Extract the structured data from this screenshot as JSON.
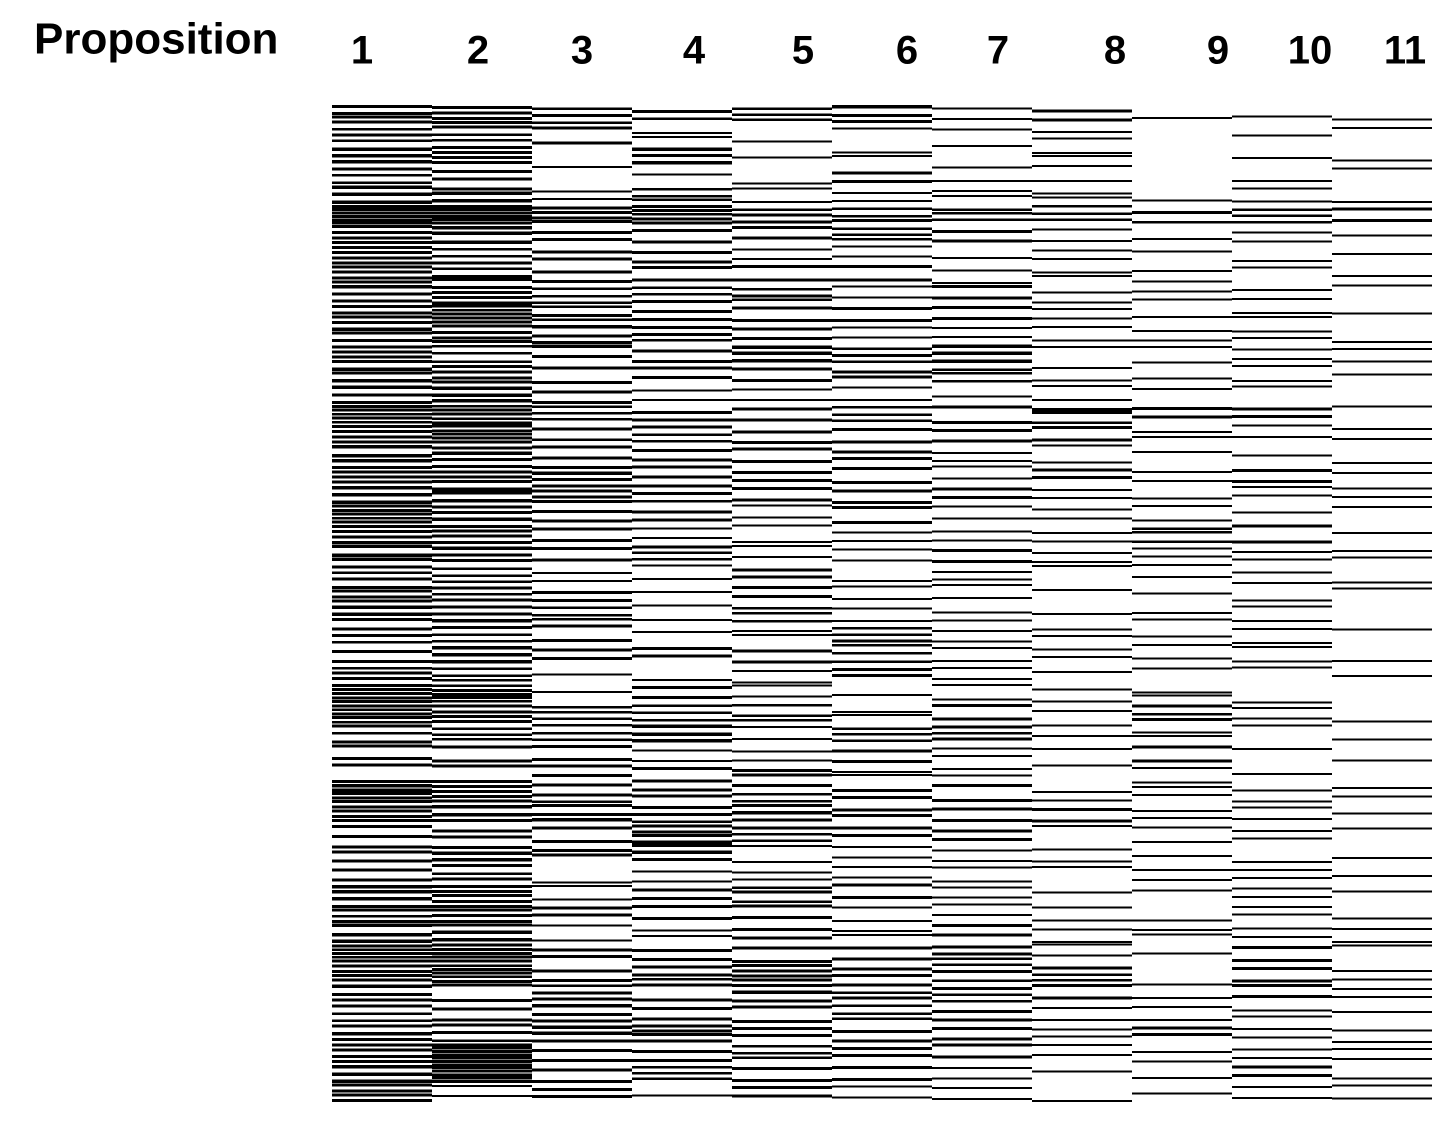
{
  "chart_data": {
    "type": "heatmap",
    "title": "Proposition",
    "color": "#000000",
    "categories": [
      "1",
      "2",
      "3",
      "4",
      "5",
      "6",
      "7",
      "8",
      "9",
      "10",
      "11"
    ],
    "values": [
      [
        0.6,
        0.4,
        0.5,
        0.4,
        0.5,
        0.9,
        0.6,
        0.6,
        0.6,
        0.5,
        0.6,
        0.5,
        0.6,
        0.5,
        0.5,
        0.7,
        0.6,
        0.5,
        0.6,
        0.5,
        0.7,
        0.6,
        0.5,
        0.4,
        0.6,
        0.5,
        0.4,
        0.3,
        0.4,
        0.8,
        0.7,
        0.4,
        0.3,
        0.3,
        0.8,
        0.6,
        0.3,
        0.5,
        0.3,
        0.5,
        0.6,
        0.5,
        0.7,
        0.6,
        0.5,
        0.4,
        0.5,
        0.6,
        0.5,
        0.6
      ],
      [
        0.6,
        0.4,
        0.6,
        0.3,
        0.5,
        0.9,
        0.5,
        0.4,
        0.4,
        0.6,
        0.7,
        0.6,
        0.4,
        0.6,
        0.5,
        0.7,
        0.7,
        0.5,
        0.6,
        0.5,
        0.5,
        0.6,
        0.5,
        0.4,
        0.4,
        0.5,
        0.4,
        0.5,
        0.4,
        0.7,
        0.6,
        0.4,
        0.3,
        0.3,
        0.6,
        0.5,
        0.3,
        0.5,
        0.4,
        0.6,
        0.6,
        0.5,
        0.8,
        0.7,
        0.3,
        0.3,
        0.4,
        0.9,
        0.9,
        0.2
      ],
      [
        0.4,
        0.3,
        0.0,
        0.1,
        0.2,
        0.6,
        0.3,
        0.3,
        0.3,
        0.4,
        0.4,
        0.5,
        0.3,
        0.3,
        0.3,
        0.4,
        0.3,
        0.3,
        0.5,
        0.6,
        0.3,
        0.3,
        0.3,
        0.2,
        0.3,
        0.4,
        0.3,
        0.3,
        0.1,
        0.1,
        0.4,
        0.4,
        0.3,
        0.3,
        0.4,
        0.5,
        0.3,
        0.3,
        0.1,
        0.2,
        0.3,
        0.2,
        0.3,
        0.3,
        0.4,
        0.5,
        0.5,
        0.3,
        0.3,
        0.3
      ],
      [
        0.3,
        0.2,
        0.5,
        0.1,
        0.4,
        0.7,
        0.3,
        0.3,
        0.3,
        0.4,
        0.3,
        0.4,
        0.3,
        0.3,
        0.2,
        0.3,
        0.4,
        0.3,
        0.3,
        0.4,
        0.3,
        0.2,
        0.4,
        0.2,
        0.1,
        0.2,
        0.1,
        0.3,
        0.1,
        0.3,
        0.4,
        0.5,
        0.2,
        0.3,
        0.3,
        0.4,
        0.6,
        0.5,
        0.2,
        0.3,
        0.3,
        0.2,
        0.3,
        0.4,
        0.3,
        0.3,
        0.6,
        0.3,
        0.4,
        0.1
      ],
      [
        0.4,
        0.1,
        0.1,
        0.1,
        0.2,
        0.4,
        0.3,
        0.2,
        0.3,
        0.4,
        0.3,
        0.3,
        0.5,
        0.3,
        0.2,
        0.3,
        0.3,
        0.3,
        0.3,
        0.3,
        0.2,
        0.2,
        0.2,
        0.3,
        0.3,
        0.4,
        0.2,
        0.3,
        0.2,
        0.2,
        0.4,
        0.2,
        0.2,
        0.3,
        0.4,
        0.5,
        0.4,
        0.2,
        0.2,
        0.4,
        0.3,
        0.3,
        0.3,
        0.6,
        0.5,
        0.3,
        0.3,
        0.4,
        0.3,
        0.3
      ],
      [
        0.5,
        0.1,
        0.2,
        0.3,
        0.2,
        0.4,
        0.4,
        0.2,
        0.3,
        0.2,
        0.3,
        0.2,
        0.4,
        0.3,
        0.2,
        0.4,
        0.3,
        0.3,
        0.3,
        0.3,
        0.3,
        0.2,
        0.2,
        0.1,
        0.2,
        0.2,
        0.4,
        0.4,
        0.3,
        0.1,
        0.2,
        0.4,
        0.3,
        0.2,
        0.3,
        0.3,
        0.3,
        0.2,
        0.2,
        0.3,
        0.2,
        0.2,
        0.3,
        0.3,
        0.4,
        0.4,
        0.3,
        0.3,
        0.3,
        0.2
      ],
      [
        0.2,
        0.1,
        0.1,
        0.2,
        0.2,
        0.4,
        0.3,
        0.1,
        0.2,
        0.3,
        0.3,
        0.2,
        0.5,
        0.4,
        0.1,
        0.3,
        0.3,
        0.2,
        0.2,
        0.3,
        0.2,
        0.2,
        0.3,
        0.2,
        0.2,
        0.2,
        0.2,
        0.2,
        0.2,
        0.2,
        0.3,
        0.4,
        0.2,
        0.2,
        0.3,
        0.3,
        0.3,
        0.2,
        0.2,
        0.2,
        0.2,
        0.3,
        0.4,
        0.4,
        0.4,
        0.3,
        0.3,
        0.3,
        0.2,
        0.2
      ],
      [
        0.3,
        0.2,
        0.2,
        0.2,
        0.2,
        0.4,
        0.2,
        0.2,
        0.2,
        0.2,
        0.2,
        0.2,
        0.1,
        0.2,
        0.2,
        0.4,
        0.3,
        0.2,
        0.3,
        0.2,
        0.2,
        0.2,
        0.2,
        0.1,
        0.1,
        0.1,
        0.2,
        0.2,
        0.1,
        0.2,
        0.1,
        0.2,
        0.1,
        0.1,
        0.2,
        0.3,
        0.1,
        0.2,
        0.1,
        0.1,
        0.2,
        0.2,
        0.2,
        0.4,
        0.3,
        0.2,
        0.2,
        0.2,
        0.1,
        0.1
      ],
      [
        0.1,
        0.0,
        0.0,
        0.0,
        0.1,
        0.3,
        0.1,
        0.1,
        0.2,
        0.2,
        0.1,
        0.2,
        0.2,
        0.1,
        0.1,
        0.3,
        0.2,
        0.1,
        0.2,
        0.1,
        0.2,
        0.4,
        0.2,
        0.2,
        0.1,
        0.2,
        0.1,
        0.2,
        0.1,
        0.2,
        0.4,
        0.2,
        0.3,
        0.2,
        0.2,
        0.2,
        0.2,
        0.1,
        0.2,
        0.1,
        0.1,
        0.2,
        0.1,
        0.0,
        0.2,
        0.2,
        0.3,
        0.2,
        0.1,
        0.1
      ],
      [
        0.1,
        0.1,
        0.1,
        0.1,
        0.2,
        0.4,
        0.2,
        0.1,
        0.1,
        0.2,
        0.2,
        0.2,
        0.2,
        0.2,
        0.1,
        0.3,
        0.2,
        0.1,
        0.3,
        0.2,
        0.1,
        0.3,
        0.2,
        0.2,
        0.1,
        0.2,
        0.2,
        0.2,
        0.1,
        0.1,
        0.2,
        0.1,
        0.1,
        0.1,
        0.2,
        0.2,
        0.2,
        0.1,
        0.2,
        0.2,
        0.2,
        0.2,
        0.3,
        0.3,
        0.3,
        0.2,
        0.2,
        0.2,
        0.3,
        0.2
      ],
      [
        0.1,
        0.1,
        0.1,
        0.1,
        0.1,
        0.3,
        0.1,
        0.1,
        0.1,
        0.1,
        0.1,
        0.1,
        0.2,
        0.1,
        0.0,
        0.1,
        0.2,
        0.1,
        0.1,
        0.2,
        0.1,
        0.1,
        0.2,
        0.1,
        0.1,
        0.0,
        0.1,
        0.1,
        0.1,
        0.0,
        0.1,
        0.1,
        0.1,
        0.0,
        0.2,
        0.1,
        0.1,
        0.1,
        0.1,
        0.1,
        0.1,
        0.2,
        0.1,
        0.2,
        0.2,
        0.1,
        0.2,
        0.2,
        0.1,
        0.2
      ]
    ]
  }
}
